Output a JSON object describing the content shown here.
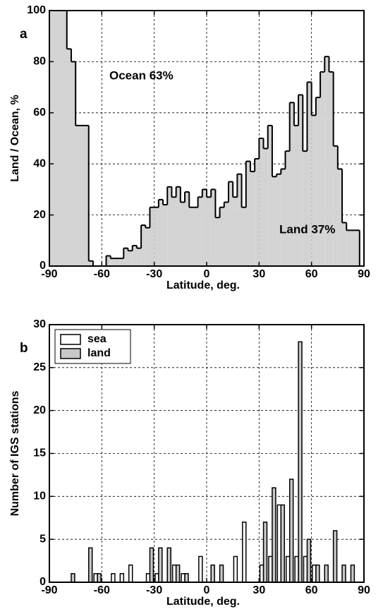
{
  "chart_data": [
    {
      "type": "histogram",
      "label": "a",
      "bins": [
        -90,
        -87.5,
        -85,
        -82.5,
        -80,
        -77.5,
        -75,
        -72.5,
        -70,
        -67.5,
        -65,
        -62.5,
        -60,
        -57.5,
        -55,
        -52.5,
        -50,
        -47.5,
        -45,
        -42.5,
        -40,
        -37.5,
        -35,
        -32.5,
        -30,
        -27.5,
        -25,
        -22.5,
        -20,
        -17.5,
        -15,
        -12.5,
        -10,
        -7.5,
        -5,
        -2.5,
        0,
        2.5,
        5,
        7.5,
        10,
        12.5,
        15,
        17.5,
        20,
        22.5,
        25,
        27.5,
        30,
        32.5,
        35,
        37.5,
        40,
        42.5,
        45,
        47.5,
        50,
        52.5,
        55,
        57.5,
        60,
        62.5,
        65,
        67.5,
        70,
        72.5,
        75,
        77.5,
        80,
        82.5,
        85,
        87.5,
        90
      ],
      "values": [
        100,
        100,
        100,
        100,
        85,
        80,
        55,
        55,
        55,
        2,
        0,
        0,
        0,
        4,
        3,
        3,
        3,
        7,
        6,
        8,
        7,
        16,
        15,
        23,
        23,
        26,
        24,
        31,
        27,
        31,
        25,
        29,
        23,
        23,
        27,
        30,
        27,
        30,
        19,
        23,
        25,
        33,
        27,
        36,
        23,
        41,
        37,
        42,
        50,
        46,
        55,
        35,
        36,
        38,
        45,
        64,
        55,
        67,
        45,
        72,
        59,
        66,
        76,
        82,
        76,
        47,
        38,
        17,
        14,
        14,
        14,
        0
      ],
      "color": "#d3d3d3",
      "xlim": [
        -90,
        90
      ],
      "ylim": [
        0,
        100
      ],
      "xticks": [
        -90,
        -60,
        -30,
        0,
        30,
        60,
        90
      ],
      "yticks": [
        0,
        20,
        40,
        60,
        80,
        100
      ],
      "xlabel": "Latitude, deg.",
      "ylabel": "Land / Ocean, %",
      "annotations": [
        "Ocean 63%",
        "Land 37%"
      ],
      "grid": true
    },
    {
      "type": "histogram",
      "label": "b",
      "bins": [
        -90,
        -85,
        -80,
        -75,
        -70,
        -65,
        -60,
        -55,
        -50,
        -45,
        -40,
        -35,
        -30,
        -25,
        -20,
        -15,
        -10,
        -5,
        0,
        5,
        10,
        15,
        20,
        25,
        30,
        35,
        40,
        45,
        50,
        55,
        60,
        65,
        70,
        75,
        80,
        85,
        90
      ],
      "series": [
        {
          "name": "sea",
          "color": "#ffffff",
          "values": [
            0,
            0,
            0,
            0,
            0,
            1,
            0,
            1,
            1,
            2,
            0,
            1,
            1,
            0,
            2,
            1,
            0,
            3,
            0,
            0,
            0,
            3,
            7,
            0,
            2,
            3,
            9,
            3,
            3,
            3,
            2,
            0,
            0,
            0,
            0,
            0
          ]
        },
        {
          "name": "land",
          "color": "#c8c8c8",
          "values": [
            0,
            0,
            1,
            0,
            4,
            1,
            0,
            0,
            0,
            0,
            0,
            4,
            4,
            4,
            2,
            1,
            0,
            0,
            2,
            2,
            0,
            0,
            0,
            0,
            7,
            11,
            9,
            12,
            28,
            5,
            2,
            2,
            6,
            2,
            2,
            0
          ]
        }
      ],
      "xlim": [
        -90,
        90
      ],
      "ylim": [
        0,
        30
      ],
      "xticks": [
        -90,
        -60,
        -30,
        0,
        30,
        60,
        90
      ],
      "yticks": [
        0,
        5,
        10,
        15,
        20,
        25,
        30
      ],
      "xlabel": "Latitude, deg.",
      "ylabel": "Number of IGS stations",
      "legend": "upper left",
      "grid": true
    }
  ]
}
